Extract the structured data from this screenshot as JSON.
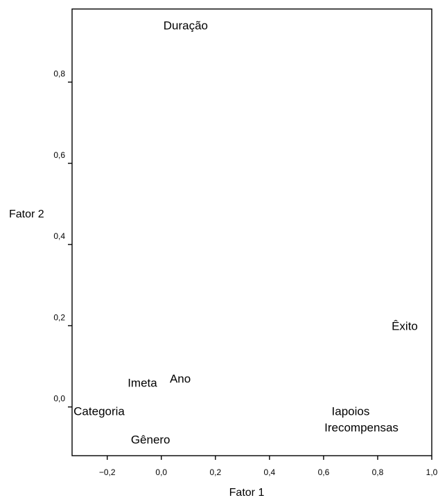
{
  "chart_data": {
    "type": "scatter",
    "xlabel": "Fator 1",
    "ylabel": "Fator 2",
    "xlim": [
      -0.33,
      1.0
    ],
    "ylim": [
      -0.12,
      0.98
    ],
    "x_ticks": [
      {
        "value": -0.2,
        "label": "−0,2"
      },
      {
        "value": 0.0,
        "label": "0,0"
      },
      {
        "value": 0.2,
        "label": "0,2"
      },
      {
        "value": 0.4,
        "label": "0,4"
      },
      {
        "value": 0.6,
        "label": "0,6"
      },
      {
        "value": 0.8,
        "label": "0,8"
      },
      {
        "value": 1.0,
        "label": "1,0"
      }
    ],
    "y_ticks": [
      {
        "value": 0.0,
        "label": "0,0"
      },
      {
        "value": 0.2,
        "label": "0,2"
      },
      {
        "value": 0.4,
        "label": "0,4"
      },
      {
        "value": 0.6,
        "label": "0,6"
      },
      {
        "value": 0.8,
        "label": "0,8"
      }
    ],
    "points": [
      {
        "label": "Duração",
        "x": 0.09,
        "y": 0.94
      },
      {
        "label": "Êxito",
        "x": 0.9,
        "y": 0.2
      },
      {
        "label": "Ano",
        "x": 0.07,
        "y": 0.07
      },
      {
        "label": "Imeta",
        "x": -0.07,
        "y": 0.06
      },
      {
        "label": "Categoria",
        "x": -0.23,
        "y": -0.01
      },
      {
        "label": "Iapoios",
        "x": 0.7,
        "y": -0.01
      },
      {
        "label": "Irecompensas",
        "x": 0.74,
        "y": -0.05
      },
      {
        "label": "Gênero",
        "x": -0.04,
        "y": -0.08
      }
    ],
    "grid": false,
    "legend": "none"
  }
}
